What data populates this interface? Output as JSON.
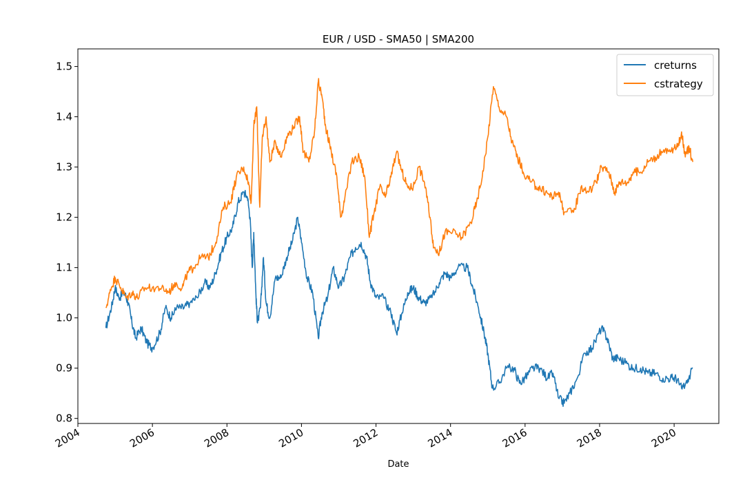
{
  "chart_data": {
    "type": "line",
    "title": "EUR / USD - SMA50 | SMA200",
    "xlabel": "Date",
    "ylabel": "",
    "xlim": [
      2004.0,
      2021.2
    ],
    "ylim": [
      0.79,
      1.535
    ],
    "x_ticks": [
      2004,
      2006,
      2008,
      2010,
      2012,
      2014,
      2016,
      2018,
      2020
    ],
    "x_tick_labels": [
      "2004",
      "2006",
      "2008",
      "2010",
      "2012",
      "2014",
      "2016",
      "2018",
      "2020"
    ],
    "y_ticks": [
      0.8,
      0.9,
      1.0,
      1.1,
      1.2,
      1.3,
      1.4,
      1.5
    ],
    "y_tick_labels": [
      "0.8",
      "0.9",
      "1.0",
      "1.1",
      "1.2",
      "1.3",
      "1.4",
      "1.5"
    ],
    "grid": false,
    "legend_position": "top-right",
    "series": [
      {
        "name": "creturns",
        "color": "#1f77b4",
        "points": [
          [
            2004.75,
            0.98
          ],
          [
            2004.9,
            1.02
          ],
          [
            2005.0,
            1.06
          ],
          [
            2005.1,
            1.04
          ],
          [
            2005.25,
            1.05
          ],
          [
            2005.35,
            1.03
          ],
          [
            2005.45,
            0.99
          ],
          [
            2005.55,
            0.96
          ],
          [
            2005.7,
            0.98
          ],
          [
            2005.85,
            0.95
          ],
          [
            2006.0,
            0.94
          ],
          [
            2006.2,
            0.97
          ],
          [
            2006.35,
            1.02
          ],
          [
            2006.5,
            1.0
          ],
          [
            2006.65,
            1.02
          ],
          [
            2006.85,
            1.02
          ],
          [
            2007.0,
            1.03
          ],
          [
            2007.2,
            1.04
          ],
          [
            2007.4,
            1.07
          ],
          [
            2007.55,
            1.06
          ],
          [
            2007.7,
            1.09
          ],
          [
            2007.85,
            1.13
          ],
          [
            2008.0,
            1.16
          ],
          [
            2008.15,
            1.18
          ],
          [
            2008.3,
            1.23
          ],
          [
            2008.45,
            1.25
          ],
          [
            2008.55,
            1.24
          ],
          [
            2008.62,
            1.2
          ],
          [
            2008.68,
            1.1
          ],
          [
            2008.72,
            1.17
          ],
          [
            2008.78,
            1.04
          ],
          [
            2008.82,
            0.99
          ],
          [
            2008.9,
            1.02
          ],
          [
            2008.98,
            1.12
          ],
          [
            2009.05,
            1.03
          ],
          [
            2009.15,
            1.0
          ],
          [
            2009.3,
            1.08
          ],
          [
            2009.45,
            1.08
          ],
          [
            2009.6,
            1.12
          ],
          [
            2009.75,
            1.15
          ],
          [
            2009.9,
            1.2
          ],
          [
            2010.0,
            1.15
          ],
          [
            2010.15,
            1.08
          ],
          [
            2010.3,
            1.05
          ],
          [
            2010.45,
            0.96
          ],
          [
            2010.55,
            1.01
          ],
          [
            2010.7,
            1.04
          ],
          [
            2010.85,
            1.1
          ],
          [
            2011.0,
            1.06
          ],
          [
            2011.15,
            1.08
          ],
          [
            2011.3,
            1.12
          ],
          [
            2011.45,
            1.14
          ],
          [
            2011.6,
            1.15
          ],
          [
            2011.75,
            1.12
          ],
          [
            2011.85,
            1.07
          ],
          [
            2012.0,
            1.04
          ],
          [
            2012.2,
            1.04
          ],
          [
            2012.4,
            1.01
          ],
          [
            2012.55,
            0.97
          ],
          [
            2012.7,
            1.01
          ],
          [
            2012.85,
            1.05
          ],
          [
            2013.0,
            1.06
          ],
          [
            2013.15,
            1.04
          ],
          [
            2013.3,
            1.03
          ],
          [
            2013.5,
            1.04
          ],
          [
            2013.7,
            1.07
          ],
          [
            2013.85,
            1.09
          ],
          [
            2014.0,
            1.08
          ],
          [
            2014.2,
            1.1
          ],
          [
            2014.45,
            1.1
          ],
          [
            2014.6,
            1.06
          ],
          [
            2014.75,
            1.02
          ],
          [
            2014.9,
            0.97
          ],
          [
            2015.0,
            0.93
          ],
          [
            2015.12,
            0.86
          ],
          [
            2015.3,
            0.87
          ],
          [
            2015.5,
            0.9
          ],
          [
            2015.7,
            0.9
          ],
          [
            2015.85,
            0.87
          ],
          [
            2016.0,
            0.88
          ],
          [
            2016.2,
            0.9
          ],
          [
            2016.4,
            0.9
          ],
          [
            2016.6,
            0.88
          ],
          [
            2016.75,
            0.89
          ],
          [
            2016.9,
            0.84
          ],
          [
            2017.05,
            0.83
          ],
          [
            2017.2,
            0.85
          ],
          [
            2017.4,
            0.88
          ],
          [
            2017.6,
            0.93
          ],
          [
            2017.8,
            0.94
          ],
          [
            2018.05,
            0.98
          ],
          [
            2018.2,
            0.96
          ],
          [
            2018.35,
            0.92
          ],
          [
            2018.5,
            0.92
          ],
          [
            2018.7,
            0.91
          ],
          [
            2018.9,
            0.9
          ],
          [
            2019.1,
            0.9
          ],
          [
            2019.3,
            0.89
          ],
          [
            2019.5,
            0.89
          ],
          [
            2019.7,
            0.88
          ],
          [
            2019.9,
            0.88
          ],
          [
            2020.05,
            0.88
          ],
          [
            2020.2,
            0.86
          ],
          [
            2020.35,
            0.87
          ],
          [
            2020.5,
            0.9
          ]
        ]
      },
      {
        "name": "cstrategy",
        "color": "#ff7f0e",
        "points": [
          [
            2004.75,
            1.02
          ],
          [
            2004.9,
            1.06
          ],
          [
            2005.0,
            1.08
          ],
          [
            2005.15,
            1.06
          ],
          [
            2005.3,
            1.04
          ],
          [
            2005.45,
            1.05
          ],
          [
            2005.6,
            1.04
          ],
          [
            2005.8,
            1.06
          ],
          [
            2006.0,
            1.06
          ],
          [
            2006.25,
            1.06
          ],
          [
            2006.45,
            1.05
          ],
          [
            2006.6,
            1.07
          ],
          [
            2006.8,
            1.06
          ],
          [
            2006.95,
            1.09
          ],
          [
            2007.1,
            1.1
          ],
          [
            2007.3,
            1.12
          ],
          [
            2007.5,
            1.12
          ],
          [
            2007.7,
            1.15
          ],
          [
            2007.9,
            1.22
          ],
          [
            2008.1,
            1.23
          ],
          [
            2008.25,
            1.28
          ],
          [
            2008.45,
            1.3
          ],
          [
            2008.58,
            1.27
          ],
          [
            2008.65,
            1.23
          ],
          [
            2008.72,
            1.38
          ],
          [
            2008.8,
            1.42
          ],
          [
            2008.88,
            1.22
          ],
          [
            2008.95,
            1.36
          ],
          [
            2009.05,
            1.4
          ],
          [
            2009.15,
            1.31
          ],
          [
            2009.3,
            1.35
          ],
          [
            2009.45,
            1.32
          ],
          [
            2009.6,
            1.36
          ],
          [
            2009.8,
            1.38
          ],
          [
            2009.95,
            1.4
          ],
          [
            2010.05,
            1.33
          ],
          [
            2010.2,
            1.31
          ],
          [
            2010.35,
            1.37
          ],
          [
            2010.45,
            1.47
          ],
          [
            2010.55,
            1.44
          ],
          [
            2010.65,
            1.38
          ],
          [
            2010.8,
            1.33
          ],
          [
            2010.95,
            1.28
          ],
          [
            2011.05,
            1.2
          ],
          [
            2011.15,
            1.23
          ],
          [
            2011.35,
            1.31
          ],
          [
            2011.55,
            1.32
          ],
          [
            2011.7,
            1.28
          ],
          [
            2011.82,
            1.16
          ],
          [
            2011.95,
            1.21
          ],
          [
            2012.1,
            1.26
          ],
          [
            2012.25,
            1.24
          ],
          [
            2012.4,
            1.28
          ],
          [
            2012.55,
            1.33
          ],
          [
            2012.7,
            1.29
          ],
          [
            2012.85,
            1.26
          ],
          [
            2013.0,
            1.26
          ],
          [
            2013.15,
            1.3
          ],
          [
            2013.3,
            1.27
          ],
          [
            2013.45,
            1.2
          ],
          [
            2013.55,
            1.14
          ],
          [
            2013.7,
            1.13
          ],
          [
            2013.85,
            1.17
          ],
          [
            2014.05,
            1.17
          ],
          [
            2014.3,
            1.16
          ],
          [
            2014.55,
            1.19
          ],
          [
            2014.7,
            1.23
          ],
          [
            2014.85,
            1.28
          ],
          [
            2015.0,
            1.36
          ],
          [
            2015.15,
            1.46
          ],
          [
            2015.3,
            1.42
          ],
          [
            2015.5,
            1.4
          ],
          [
            2015.65,
            1.35
          ],
          [
            2015.8,
            1.32
          ],
          [
            2015.95,
            1.29
          ],
          [
            2016.15,
            1.27
          ],
          [
            2016.35,
            1.26
          ],
          [
            2016.55,
            1.25
          ],
          [
            2016.75,
            1.24
          ],
          [
            2016.9,
            1.25
          ],
          [
            2017.05,
            1.21
          ],
          [
            2017.3,
            1.21
          ],
          [
            2017.5,
            1.26
          ],
          [
            2017.7,
            1.25
          ],
          [
            2017.9,
            1.27
          ],
          [
            2018.05,
            1.3
          ],
          [
            2018.25,
            1.29
          ],
          [
            2018.4,
            1.25
          ],
          [
            2018.55,
            1.27
          ],
          [
            2018.75,
            1.27
          ],
          [
            2018.9,
            1.29
          ],
          [
            2019.1,
            1.29
          ],
          [
            2019.3,
            1.31
          ],
          [
            2019.5,
            1.32
          ],
          [
            2019.7,
            1.33
          ],
          [
            2019.9,
            1.33
          ],
          [
            2020.1,
            1.34
          ],
          [
            2020.2,
            1.37
          ],
          [
            2020.3,
            1.32
          ],
          [
            2020.4,
            1.34
          ],
          [
            2020.5,
            1.31
          ]
        ]
      }
    ]
  }
}
